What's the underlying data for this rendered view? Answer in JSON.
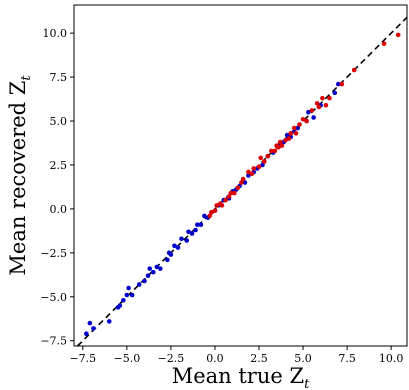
{
  "chart_data": {
    "type": "scatter",
    "xlabel": "Mean true Z",
    "xlabel_sub": "t",
    "ylabel": "Mean recovered Z",
    "ylabel_sub": "t",
    "xlim": [
      -8.0,
      10.9
    ],
    "ylim": [
      -7.8,
      11.6
    ],
    "xticks": [
      -7.5,
      -5.0,
      -2.5,
      0.0,
      2.5,
      5.0,
      7.5,
      10.0
    ],
    "xtick_labels": [
      "−7.5",
      "−5.0",
      "−2.5",
      "0.0",
      "2.5",
      "5.0",
      "7.5",
      "10.0"
    ],
    "yticks": [
      -7.5,
      -5.0,
      -2.5,
      0.0,
      2.5,
      5.0,
      7.5,
      10.0
    ],
    "ytick_labels": [
      "−7.5",
      "−5.0",
      "−2.5",
      "0.0",
      "2.5",
      "5.0",
      "7.5",
      "10.0"
    ],
    "grid": false,
    "reference_line": {
      "type": "identity",
      "style": "dashed",
      "color": "#000000"
    },
    "series": [
      {
        "color": "#0000cc",
        "points": [
          [
            -7.3,
            -7.1
          ],
          [
            -7.1,
            -6.5
          ],
          [
            -6.9,
            -6.8
          ],
          [
            -6.0,
            -6.4
          ],
          [
            -5.5,
            -5.6
          ],
          [
            -5.4,
            -5.5
          ],
          [
            -5.2,
            -5.2
          ],
          [
            -5.0,
            -4.9
          ],
          [
            -4.9,
            -4.5
          ],
          [
            -4.7,
            -4.9
          ],
          [
            -4.3,
            -4.3
          ],
          [
            -4.0,
            -4.1
          ],
          [
            -3.8,
            -3.8
          ],
          [
            -3.7,
            -3.4
          ],
          [
            -3.5,
            -3.6
          ],
          [
            -3.3,
            -3.3
          ],
          [
            -3.1,
            -3.4
          ],
          [
            -2.7,
            -2.9
          ],
          [
            -2.6,
            -2.5
          ],
          [
            -2.5,
            -2.6
          ],
          [
            -2.3,
            -2.1
          ],
          [
            -2.1,
            -2.2
          ],
          [
            -1.9,
            -1.7
          ],
          [
            -1.6,
            -1.8
          ],
          [
            -1.5,
            -1.3
          ],
          [
            -1.3,
            -1.4
          ],
          [
            -1.1,
            -1.2
          ],
          [
            -1.0,
            -0.9
          ],
          [
            -0.8,
            -0.9
          ],
          [
            -0.6,
            -0.4
          ],
          [
            -0.4,
            -0.5
          ],
          [
            -0.2,
            -0.2
          ],
          [
            0.0,
            -0.1
          ],
          [
            0.2,
            0.2
          ],
          [
            0.5,
            0.5
          ],
          [
            0.8,
            0.6
          ],
          [
            1.0,
            1.0
          ],
          [
            1.2,
            1.1
          ],
          [
            1.4,
            1.3
          ],
          [
            1.7,
            1.5
          ],
          [
            1.9,
            1.9
          ],
          [
            2.2,
            2.1
          ],
          [
            2.4,
            2.3
          ],
          [
            2.7,
            2.5
          ],
          [
            3.0,
            3.0
          ],
          [
            3.3,
            3.2
          ],
          [
            3.6,
            3.6
          ],
          [
            3.9,
            3.8
          ],
          [
            4.1,
            4.2
          ],
          [
            4.3,
            4.1
          ],
          [
            4.5,
            4.4
          ],
          [
            4.7,
            4.6
          ],
          [
            5.2,
            5.0
          ],
          [
            5.3,
            5.5
          ],
          [
            5.6,
            5.2
          ],
          [
            6.0,
            5.9
          ],
          [
            6.8,
            6.6
          ],
          [
            7.0,
            7.1
          ]
        ]
      },
      {
        "color": "#dd0000",
        "points": [
          [
            -0.3,
            -0.4
          ],
          [
            -0.2,
            -0.2
          ],
          [
            0.0,
            -0.1
          ],
          [
            0.1,
            0.2
          ],
          [
            0.3,
            0.3
          ],
          [
            0.4,
            0.2
          ],
          [
            0.6,
            0.5
          ],
          [
            0.8,
            0.7
          ],
          [
            0.9,
            0.9
          ],
          [
            1.1,
            0.9
          ],
          [
            1.3,
            1.2
          ],
          [
            1.5,
            1.5
          ],
          [
            1.6,
            1.7
          ],
          [
            1.9,
            2.1
          ],
          [
            2.1,
            2.0
          ],
          [
            2.2,
            2.3
          ],
          [
            2.5,
            2.4
          ],
          [
            2.6,
            2.9
          ],
          [
            2.8,
            2.7
          ],
          [
            3.0,
            3.0
          ],
          [
            3.2,
            3.3
          ],
          [
            3.4,
            3.3
          ],
          [
            3.5,
            3.6
          ],
          [
            3.6,
            3.5
          ],
          [
            3.7,
            3.8
          ],
          [
            3.8,
            3.6
          ],
          [
            4.0,
            3.9
          ],
          [
            4.2,
            4.0
          ],
          [
            4.3,
            4.3
          ],
          [
            4.5,
            4.6
          ],
          [
            4.6,
            4.3
          ],
          [
            4.8,
            4.8
          ],
          [
            5.0,
            5.1
          ],
          [
            5.2,
            5.0
          ],
          [
            5.5,
            5.6
          ],
          [
            5.8,
            6.0
          ],
          [
            5.9,
            5.8
          ],
          [
            6.1,
            6.3
          ],
          [
            6.3,
            5.9
          ],
          [
            6.5,
            6.3
          ],
          [
            7.2,
            7.1
          ],
          [
            7.9,
            7.9
          ],
          [
            9.6,
            9.4
          ],
          [
            10.4,
            9.9
          ]
        ]
      }
    ]
  }
}
